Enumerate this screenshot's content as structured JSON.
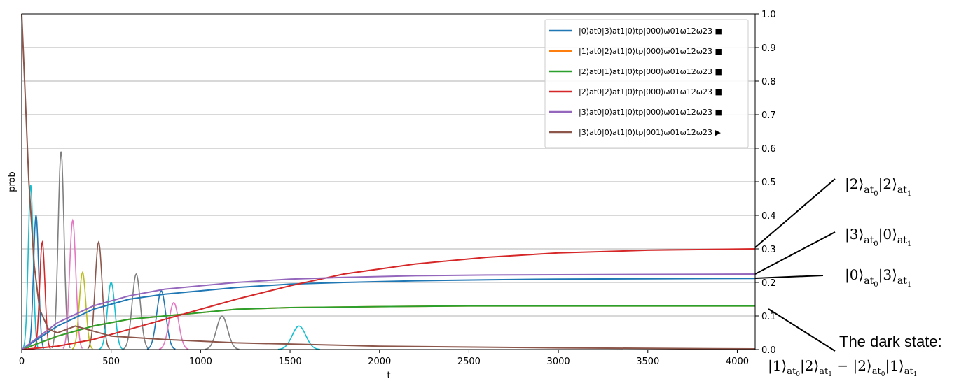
{
  "chart_data": {
    "type": "line",
    "xlabel": "t",
    "ylabel": "prob",
    "xlim": [
      0,
      4100
    ],
    "ylim": [
      0,
      1.0
    ],
    "xticks": [
      0,
      500,
      1000,
      1500,
      2000,
      2500,
      3000,
      3500,
      4000
    ],
    "yticks": [
      0.0,
      0.1,
      0.2,
      0.3,
      0.4,
      0.5,
      0.6,
      0.7,
      0.8,
      0.9,
      1.0
    ],
    "y_axis_side": "right",
    "grid": "horizontal",
    "legend_position": "top-right",
    "series": [
      {
        "name": "|0⟩at0|3⟩at1|0⟩tp|000⟩ω01ω12ω23 ■",
        "color": "#1f77b4",
        "x": [
          0,
          200,
          400,
          600,
          800,
          1000,
          1200,
          1500,
          1800,
          2200,
          2600,
          3000,
          3500,
          4100
        ],
        "y": [
          0.0,
          0.07,
          0.12,
          0.15,
          0.165,
          0.175,
          0.185,
          0.195,
          0.2,
          0.205,
          0.208,
          0.21,
          0.211,
          0.212
        ]
      },
      {
        "name": "|1⟩at0|2⟩at1|0⟩tp|000⟩ω01ω12ω23 ■",
        "color": "#ff7f0e",
        "x": [
          0,
          200,
          400,
          600,
          800,
          1000,
          1200,
          1500,
          2000,
          2500,
          3000,
          3500,
          4100
        ],
        "y": [
          0.0,
          0.04,
          0.07,
          0.09,
          0.1,
          0.11,
          0.12,
          0.125,
          0.128,
          0.13,
          0.13,
          0.13,
          0.13
        ]
      },
      {
        "name": "|2⟩at0|1⟩at1|0⟩tp|000⟩ω01ω12ω23 ■",
        "color": "#2ca02c",
        "x": [
          0,
          200,
          400,
          600,
          800,
          1000,
          1200,
          1500,
          2000,
          2500,
          3000,
          3500,
          4100
        ],
        "y": [
          0.0,
          0.04,
          0.07,
          0.09,
          0.1,
          0.11,
          0.12,
          0.125,
          0.128,
          0.13,
          0.13,
          0.13,
          0.13
        ]
      },
      {
        "name": "|2⟩at0|2⟩at1|0⟩tp|000⟩ω01ω12ω23 ■",
        "color": "#d62728",
        "x": [
          0,
          200,
          400,
          600,
          800,
          1000,
          1200,
          1500,
          1800,
          2200,
          2600,
          3000,
          3500,
          4100
        ],
        "y": [
          0.0,
          0.01,
          0.03,
          0.06,
          0.09,
          0.12,
          0.15,
          0.19,
          0.225,
          0.255,
          0.275,
          0.288,
          0.296,
          0.3
        ]
      },
      {
        "name": "|3⟩at0|0⟩at1|0⟩tp|000⟩ω01ω12ω23 ■",
        "color": "#9467bd",
        "x": [
          0,
          200,
          400,
          600,
          800,
          1000,
          1200,
          1500,
          1800,
          2200,
          2600,
          3000,
          3500,
          4100
        ],
        "y": [
          0.0,
          0.08,
          0.13,
          0.16,
          0.18,
          0.19,
          0.2,
          0.21,
          0.215,
          0.22,
          0.222,
          0.223,
          0.224,
          0.225
        ]
      },
      {
        "name": "|3⟩at0|0⟩at1|0⟩tp|001⟩ω01ω12ω23 ▶",
        "color": "#8c564b",
        "x": [
          0,
          20,
          40,
          70,
          100,
          150,
          200,
          300,
          500,
          800,
          1200,
          2000,
          3000,
          4100
        ],
        "y": [
          1.0,
          0.75,
          0.5,
          0.25,
          0.12,
          0.06,
          0.05,
          0.07,
          0.04,
          0.03,
          0.02,
          0.01,
          0.005,
          0.002
        ]
      }
    ],
    "unlabeled_transient_peaks": [
      {
        "color": "#17becf",
        "t": 50,
        "p": 0.49
      },
      {
        "color": "#1f77b4",
        "t": 80,
        "p": 0.4
      },
      {
        "color": "#d62728",
        "t": 115,
        "p": 0.32
      },
      {
        "color": "#7f7f7f",
        "t": 220,
        "p": 0.59
      },
      {
        "color": "#e377c2",
        "t": 285,
        "p": 0.385
      },
      {
        "color": "#bcbd22",
        "t": 340,
        "p": 0.23
      },
      {
        "color": "#8c564b",
        "t": 430,
        "p": 0.32
      },
      {
        "color": "#17becf",
        "t": 500,
        "p": 0.2
      },
      {
        "color": "#7f7f7f",
        "t": 640,
        "p": 0.225
      },
      {
        "color": "#1f77b4",
        "t": 780,
        "p": 0.175
      },
      {
        "color": "#e377c2",
        "t": 850,
        "p": 0.14
      },
      {
        "color": "#7f7f7f",
        "t": 1120,
        "p": 0.1
      },
      {
        "color": "#17becf",
        "t": 1550,
        "p": 0.07
      }
    ]
  },
  "annotations": {
    "a1": {
      "prefix": "|2⟩",
      "sub1": "at",
      "sub1b": "0",
      "mid": "|2⟩",
      "sub2": "at",
      "sub2b": "1"
    },
    "a2": {
      "prefix": "|3⟩",
      "sub1": "at",
      "sub1b": "0",
      "mid": "|0⟩",
      "sub2": "at",
      "sub2b": "1"
    },
    "a3": {
      "prefix": "|0⟩",
      "sub1": "at",
      "sub1b": "0",
      "mid": "|3⟩",
      "sub2": "at",
      "sub2b": "1"
    },
    "dark_label": "The dark state:",
    "dark_formula": {
      "p1": "|1⟩",
      "s1": "at",
      "s1b": "0",
      "p2": "|2⟩",
      "s2": "at",
      "s2b": "1",
      "minus": " − ",
      "p3": "|2⟩",
      "s3": "at",
      "s3b": "0",
      "p4": "|1⟩",
      "s4": "at",
      "s4b": "1"
    }
  }
}
